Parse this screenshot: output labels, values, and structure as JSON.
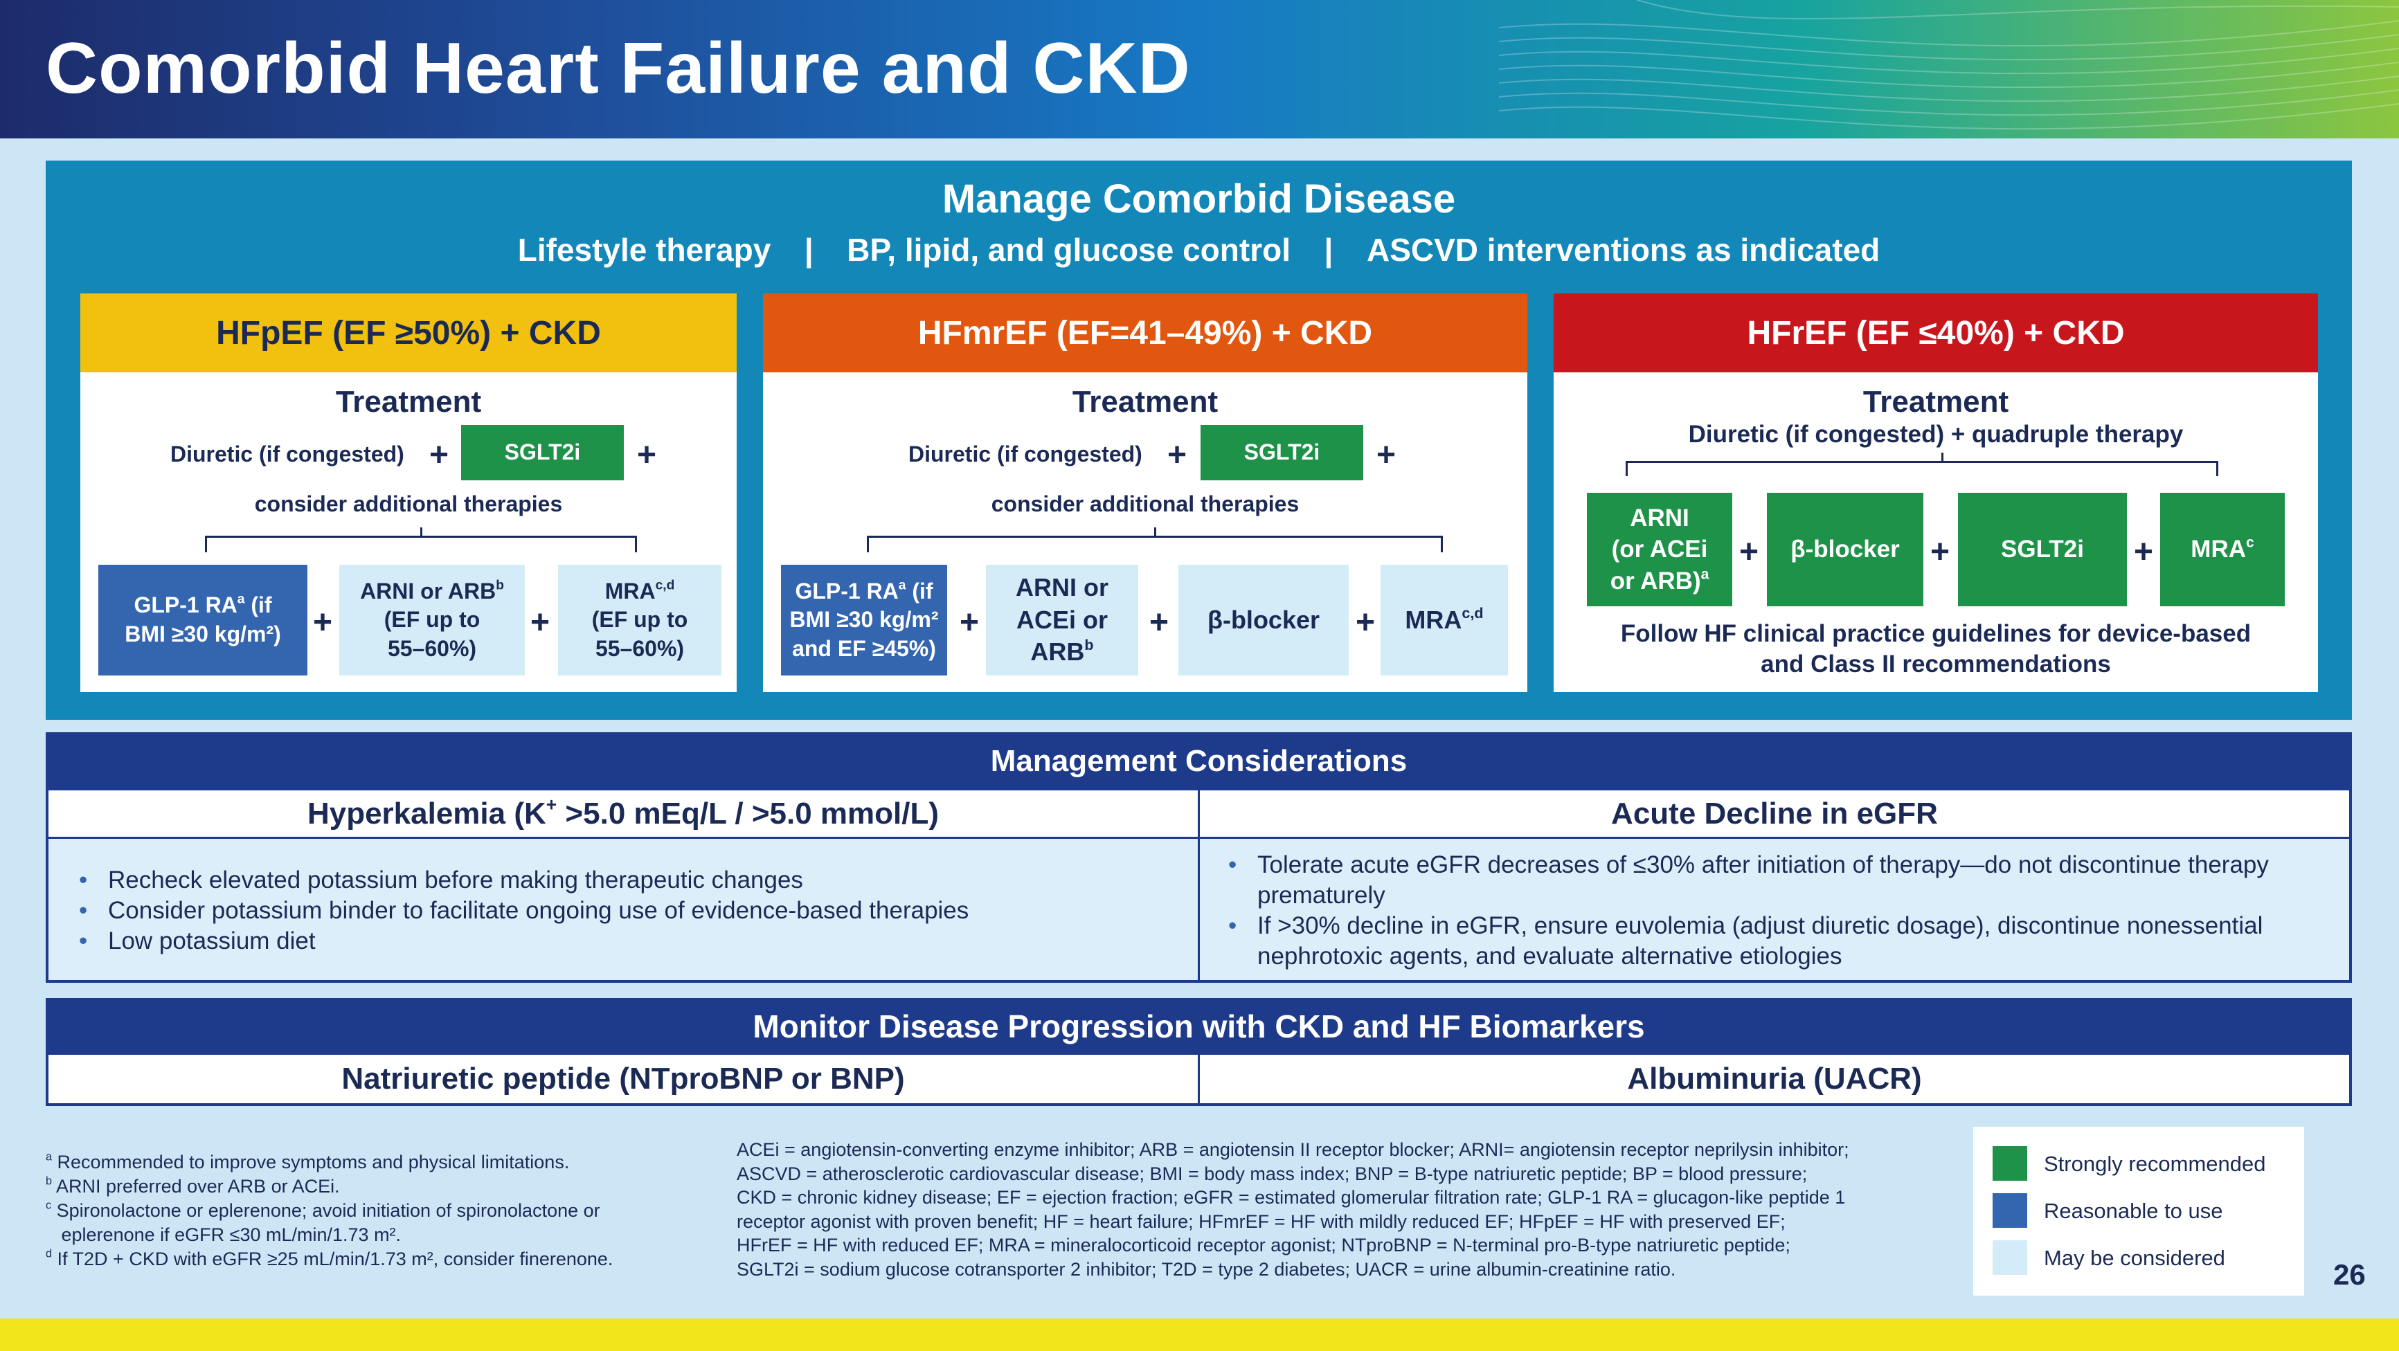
{
  "title": "Comorbid Heart Failure and CKD",
  "manage": {
    "title": "Manage Comorbid Disease",
    "items": [
      "Lifestyle therapy",
      "BP, lipid, and glucose control",
      "ASCVD interventions as indicated"
    ],
    "separator": "|"
  },
  "columns": {
    "hfpef": {
      "heading": "HFpEF (EF ≥50%) + CKD",
      "treatment": "Treatment",
      "diuretic": "Diuretic (if congested)",
      "sglt2i": "SGLT2i",
      "consider": "consider additional therapies",
      "glp1": "GLP-1 RA",
      "glp1_sup": "a",
      "glp1_rest1": " (if",
      "glp1_rest2": "BMI ≥30 kg/m²)",
      "arni_line1": "ARNI or ARB",
      "arni_sup": "b",
      "arni_line2": "(EF up to",
      "arni_line3": "55–60%)",
      "mra_line1": "MRA",
      "mra_sup": "c,d",
      "mra_line2": "(EF up to",
      "mra_line3": "55–60%)"
    },
    "hfmref": {
      "heading": "HFmrEF (EF=41–49%) + CKD",
      "treatment": "Treatment",
      "diuretic": "Diuretic (if congested)",
      "sglt2i": "SGLT2i",
      "consider": "consider additional therapies",
      "glp1": "GLP-1 RA",
      "glp1_sup": "a",
      "glp1_rest1": " (if",
      "glp1_rest2": "BMI ≥30 kg/m²",
      "glp1_rest3": "and EF ≥45%)",
      "arni_line1": "ARNI or",
      "arni_line2": "ACEi or",
      "arni_line3": "ARB",
      "arni_sup": "b",
      "beta": "β-blocker",
      "mra": "MRA",
      "mra_sup": "c,d"
    },
    "hfref": {
      "heading": "HFrEF (EF ≤40%) + CKD",
      "treatment": "Treatment",
      "diuretic": "Diuretic (if congested) + quadruple therapy",
      "arni_line1": "ARNI",
      "arni_line2": "(or ACEi",
      "arni_line3": "or ARB)",
      "arni_sup": "a",
      "beta": "β-blocker",
      "sglt2i": "SGLT2i",
      "mra": "MRA",
      "mra_sup": "c",
      "follow_line1": "Follow HF clinical practice guidelines for device-based",
      "follow_line2": "and Class II recommendations"
    }
  },
  "plus": "+",
  "management": {
    "title": "Management Considerations",
    "hyper_title_a": "Hyperkalemia (K",
    "hyper_title_sup": "+",
    "hyper_title_b": " >5.0 mEq/L / >5.0 mmol/L)",
    "hyper_items": [
      "Recheck elevated potassium before making therapeutic changes",
      "Consider potassium binder to facilitate ongoing use of evidence-based therapies",
      "Low potassium diet"
    ],
    "egfr_title": "Acute Decline in eGFR",
    "egfr_items": [
      "Tolerate acute eGFR decreases of ≤30% after initiation of therapy—do not discontinue therapy prematurely",
      "If >30% decline in eGFR, ensure euvolemia (adjust diuretic dosage), discontinue nonessential nephrotoxic agents, and evaluate alternative etiologies"
    ]
  },
  "monitor": {
    "title": "Monitor Disease Progression with CKD and HF Biomarkers",
    "left": "Natriuretic peptide (NTproBNP or BNP)",
    "right": "Albuminuria (UACR)"
  },
  "footnotes": {
    "a": "Recommended to improve symptoms and physical limitations.",
    "b": "ARNI preferred over ARB or ACEi.",
    "c1": "Spironolactone or eplerenone; avoid initiation of spironolactone or",
    "c2": "eplerenone if eGFR ≤30 mL/min/1.73 m².",
    "d": "If T2D + CKD with eGFR ≥25 mL/min/1.73 m², consider finerenone."
  },
  "abbreviations": [
    "ACEi = angiotensin-converting enzyme inhibitor; ARB = angiotensin II receptor blocker; ARNI= angiotensin receptor neprilysin inhibitor;",
    "ASCVD = atherosclerotic cardiovascular disease; BMI = body mass index; BNP = B-type natriuretic peptide; BP = blood pressure;",
    "CKD = chronic kidney disease; EF = ejection fraction; eGFR = estimated glomerular filtration rate; GLP-1 RA = glucagon-like peptide 1",
    "receptor agonist with proven benefit; HF = heart failure; HFmrEF = HF with mildly reduced EF; HFpEF = HF with preserved EF;",
    "HFrEF = HF with reduced EF; MRA = mineralocorticoid receptor agonist; NTproBNP = N-terminal pro-B-type natriuretic peptide;",
    "SGLT2i = sodium glucose cotransporter 2 inhibitor; T2D = type 2 diabetes; UACR = urine albumin-creatinine ratio."
  ],
  "legend": {
    "strong": "Strongly recommended",
    "reasonable": "Reasonable to use",
    "may": "May be considered"
  },
  "colors": {
    "strong": "#1e9248",
    "reasonable": "#3466b0",
    "may": "#d4ecf8",
    "hfpef": "#f2c10f",
    "hfmref": "#e2570f",
    "hfref": "#c8161d"
  },
  "page_number": "26"
}
